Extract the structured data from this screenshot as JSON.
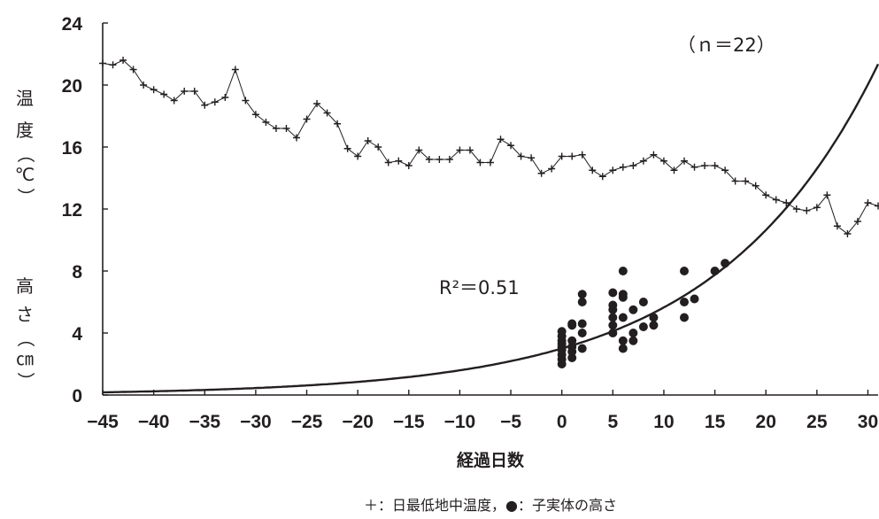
{
  "chart_data": {
    "type": "scatter",
    "title": "",
    "xlabel": "経過日数",
    "ylabel_temperature": [
      "温",
      "度",
      "（",
      "℃",
      "）"
    ],
    "ylabel_height": [
      "高",
      "さ",
      "（",
      "㎝",
      "）"
    ],
    "caption": "＋：日最低地中温度，●：子実体の高さ",
    "annotations": {
      "n": "（ｎ＝22）",
      "r2": "R²＝0.51"
    },
    "xlim": [
      -45,
      31
    ],
    "ylim": [
      0,
      24
    ],
    "x_ticks": [
      -45,
      -40,
      -35,
      -30,
      -25,
      -20,
      -15,
      -10,
      -5,
      0,
      5,
      10,
      15,
      20,
      25,
      30
    ],
    "y_ticks": [
      0,
      4,
      8,
      12,
      16,
      20,
      24
    ],
    "grid": false,
    "colors": {
      "ink": "#231f20",
      "background": "#ffffff"
    },
    "series": [
      {
        "name": "日最低地中温度",
        "type": "line",
        "marker": "+",
        "x": [
          -45,
          -44,
          -43,
          -42,
          -41,
          -40,
          -39,
          -38,
          -37,
          -36,
          -35,
          -34,
          -33,
          -32,
          -31,
          -30,
          -29,
          -28,
          -27,
          -26,
          -25,
          -24,
          -23,
          -22,
          -21,
          -20,
          -19,
          -18,
          -17,
          -16,
          -15,
          -14,
          -13,
          -12,
          -11,
          -10,
          -9,
          -8,
          -7,
          -6,
          -5,
          -4,
          -3,
          -2,
          -1,
          0,
          1,
          2,
          3,
          4,
          5,
          6,
          7,
          8,
          9,
          10,
          11,
          12,
          13,
          14,
          15,
          16,
          17,
          18,
          19,
          20,
          21,
          22,
          23,
          24,
          25,
          26,
          27,
          28,
          29,
          30,
          31
        ],
        "y": [
          21.4,
          21.3,
          21.6,
          21.0,
          20.0,
          19.7,
          19.4,
          19.0,
          19.6,
          19.6,
          18.7,
          18.9,
          19.2,
          21.0,
          19.0,
          18.1,
          17.6,
          17.2,
          17.2,
          16.6,
          17.8,
          18.8,
          18.2,
          17.5,
          15.9,
          15.4,
          16.4,
          16.0,
          15.0,
          15.1,
          14.8,
          15.8,
          15.2,
          15.2,
          15.2,
          15.8,
          15.8,
          15.0,
          15.0,
          16.5,
          16.1,
          15.4,
          15.3,
          14.3,
          14.6,
          15.4,
          15.4,
          15.5,
          14.5,
          14.1,
          14.5,
          14.7,
          14.8,
          15.1,
          15.5,
          15.1,
          14.5,
          15.1,
          14.7,
          14.8,
          14.8,
          14.5,
          13.8,
          13.8,
          13.5,
          12.9,
          12.6,
          12.4,
          12.0,
          11.9,
          12.1,
          12.9,
          10.9,
          10.4,
          11.2,
          12.4,
          12.2
        ]
      },
      {
        "name": "子実体の高さ",
        "type": "scatter",
        "marker": "●",
        "x": [
          0,
          0,
          0,
          0,
          0,
          0,
          0,
          0,
          0,
          1,
          1,
          1,
          1,
          1,
          1,
          2,
          2,
          2,
          2,
          2,
          5,
          5,
          5,
          5,
          5,
          5,
          6,
          6,
          6,
          6,
          6,
          6,
          7,
          7,
          7,
          8,
          8,
          9,
          9,
          12,
          12,
          12,
          13,
          15,
          16
        ],
        "y": [
          2.0,
          2.3,
          2.6,
          2.9,
          3.1,
          3.3,
          3.5,
          3.8,
          4.1,
          2.4,
          2.8,
          3.1,
          3.5,
          4.5,
          4.6,
          3.0,
          4.0,
          4.6,
          6.0,
          6.5,
          4.0,
          4.5,
          5.5,
          5.8,
          6.6,
          5.0,
          3.0,
          3.5,
          5.0,
          6.3,
          6.5,
          8.0,
          3.5,
          4.0,
          5.5,
          4.4,
          6.0,
          4.5,
          5.0,
          5.0,
          6.0,
          8.0,
          6.2,
          8.0,
          8.5
        ]
      },
      {
        "name": "",
        "type": "curve",
        "equation": "y = a * exp(b * x)",
        "a": 3.0,
        "b": 0.0633,
        "r2": 0.51
      }
    ]
  }
}
